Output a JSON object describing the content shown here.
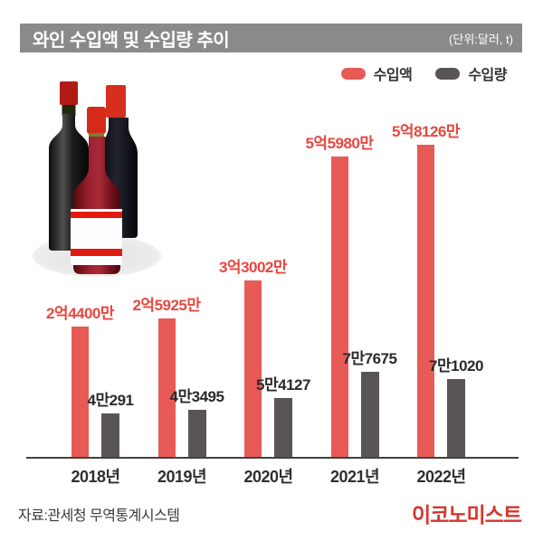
{
  "header": {
    "title": "와인 수입액 및 수입량 추이",
    "unit_note": "(단위:달러, t)"
  },
  "legend": [
    {
      "label": "수입액",
      "color": "#e85a56"
    },
    {
      "label": "수입량",
      "color": "#595557"
    }
  ],
  "chart_data": {
    "type": "bar",
    "title": "와인 수입액 및 수입량 추이",
    "unit_note": "(단위:달러, t)",
    "categories": [
      "2018년",
      "2019년",
      "2020년",
      "2021년",
      "2022년"
    ],
    "series": [
      {
        "name": "수입액",
        "unit": "달러",
        "color": "#e85a56",
        "label_color": "#e8473f",
        "values": [
          244000000,
          259250000,
          330020000,
          559800000,
          581260000
        ],
        "labels": [
          "2억4400만",
          "2억5925만",
          "3억3002만",
          "5억5980만",
          "5억8126만"
        ]
      },
      {
        "name": "수입량",
        "unit": "t",
        "color": "#595557",
        "label_color": "#2b2b2b",
        "values": [
          40291,
          43495,
          54127,
          77675,
          71020
        ],
        "labels": [
          "4만291",
          "4만3495",
          "5만4127",
          "7만7675",
          "7만1020"
        ]
      }
    ],
    "legend_position": "top-right",
    "grid": false,
    "axis_line_color": "#414141"
  },
  "footer": {
    "source": "자료:관세청 무역통계시스템",
    "logo": "이코노미스트",
    "logo_color": "#d6352c"
  }
}
